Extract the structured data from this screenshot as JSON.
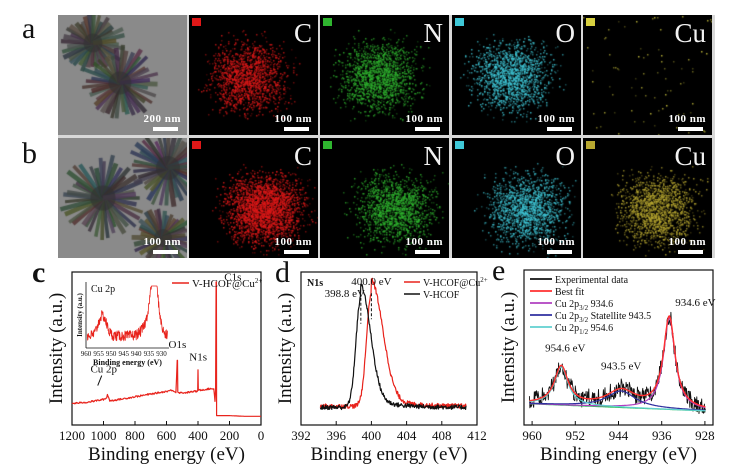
{
  "figure": {
    "panel_labels": [
      "a",
      "b",
      "c",
      "d",
      "e"
    ],
    "image_rows": [
      {
        "label": "a",
        "tiles": [
          {
            "kind": "tem",
            "scale_label": "200 nm"
          },
          {
            "kind": "map",
            "element": "C",
            "color": "#e01818",
            "scale_label": "100 nm",
            "density": "medium"
          },
          {
            "kind": "map",
            "element": "N",
            "color": "#2fb52f",
            "scale_label": "100 nm",
            "density": "medium"
          },
          {
            "kind": "map",
            "element": "O",
            "color": "#3fc8d8",
            "scale_label": "100 nm",
            "density": "medium"
          },
          {
            "kind": "map",
            "element": "Cu",
            "color": "#d8d040",
            "scale_label": "100 nm",
            "density": "sparse"
          }
        ]
      },
      {
        "label": "b",
        "tiles": [
          {
            "kind": "tem",
            "scale_label": "100 nm"
          },
          {
            "kind": "map",
            "element": "C",
            "color": "#e01818",
            "scale_label": "100 nm",
            "density": "high"
          },
          {
            "kind": "map",
            "element": "N",
            "color": "#2fb52f",
            "scale_label": "100 nm",
            "density": "medium"
          },
          {
            "kind": "map",
            "element": "O",
            "color": "#3fc8d8",
            "scale_label": "100 nm",
            "density": "medium"
          },
          {
            "kind": "map",
            "element": "Cu",
            "color": "#b8a830",
            "scale_label": "100 nm",
            "density": "medium"
          }
        ]
      }
    ]
  },
  "chart_data": [
    {
      "id": "c",
      "type": "line",
      "title": "",
      "xlabel": "Binding energy (eV)",
      "ylabel": "Intensity (a.u.)",
      "xlim": [
        1200,
        0
      ],
      "x_reversed": true,
      "xticks": [
        1200,
        1000,
        800,
        600,
        400,
        200,
        0
      ],
      "legend": [
        {
          "name": "V-HCOF@Cu",
          "sup": "2+",
          "color": "#e8231c"
        }
      ],
      "legend_position": "top-right",
      "series": [
        {
          "name": "V-HCOF@Cu2+",
          "color": "#e8231c",
          "x": [
            1200,
            1100,
            1000,
            980,
            975,
            960,
            900,
            800,
            700,
            600,
            560,
            540,
            532,
            530,
            528,
            520,
            480,
            420,
            402,
            400,
            398,
            380,
            320,
            300,
            292,
            288,
            285,
            283,
            282,
            280,
            260,
            200,
            100,
            0
          ],
          "y": [
            0.1,
            0.11,
            0.13,
            0.14,
            0.17,
            0.12,
            0.13,
            0.15,
            0.17,
            0.19,
            0.2,
            0.18,
            0.42,
            0.42,
            0.19,
            0.18,
            0.18,
            0.19,
            0.19,
            0.35,
            0.2,
            0.2,
            0.21,
            0.21,
            0.12,
            0.2,
            1.0,
            1.0,
            0.01,
            0.01,
            0.01,
            0.01,
            0.005,
            0.005
          ]
        }
      ],
      "annotations": [
        {
          "text": "C1s",
          "x": 284,
          "y": 0.98
        },
        {
          "text": "O1s",
          "x": 531,
          "y": 0.48
        },
        {
          "text": "N1s",
          "x": 399,
          "y": 0.39
        },
        {
          "text": "Cu 2p",
          "x": 935,
          "y": 0.27,
          "arrow": true
        }
      ],
      "inset": {
        "title": "Cu 2p",
        "xlabel": "Binding energy (eV)",
        "ylabel": "Intensity (a.u.)",
        "xlim": [
          960,
          927
        ],
        "xticks": [
          960,
          955,
          950,
          945,
          940,
          935,
          930
        ],
        "series": {
          "color": "#e8231c",
          "peaks": [
            {
              "center": 953.5,
              "height": 0.35,
              "width": 1.6
            },
            {
              "center": 932.8,
              "height": 0.85,
              "width": 1.5
            },
            {
              "center": 934.5,
              "height": 0.25,
              "width": 2.5
            }
          ],
          "baseline": 0.35
        }
      }
    },
    {
      "id": "d",
      "type": "line",
      "title": "N1s",
      "xlabel": "Binding energy (eV)",
      "ylabel": "Intensity (a.u.)",
      "xlim": [
        392,
        412
      ],
      "xticks": [
        392,
        396,
        400,
        404,
        408,
        412
      ],
      "legend": [
        {
          "name": "V-HCOF@Cu",
          "sup": "2+",
          "color": "#e8231c"
        },
        {
          "name": "V-HCOF",
          "sup": "",
          "color": "#111111"
        }
      ],
      "legend_position": "top-right",
      "series": [
        {
          "name": "V-HCOF@Cu2+",
          "color": "#e8231c",
          "peak": 400.0,
          "height": 1.0,
          "width_left": 0.55,
          "width_right": 1.3,
          "baseline": 0.06,
          "x_range": [
            394.2,
            410.8
          ]
        },
        {
          "name": "V-HCOF",
          "color": "#111111",
          "peak": 398.8,
          "height": 0.97,
          "width_left": 0.55,
          "width_right": 1.1,
          "baseline": 0.05,
          "x_range": [
            394.2,
            410.8
          ]
        }
      ],
      "annotations": [
        {
          "text": "400.0 eV",
          "x": 400.0,
          "dashed_line": true
        },
        {
          "text": "398.8 eV",
          "x": 398.8,
          "dashed_line": true
        }
      ]
    },
    {
      "id": "e",
      "type": "line",
      "title": "",
      "xlabel": "Binding energy (eV)",
      "ylabel": "Intensity (a.u.)",
      "xlim": [
        961.5,
        926.5
      ],
      "x_reversed": true,
      "xticks": [
        960,
        952,
        944,
        936,
        928
      ],
      "legend": [
        {
          "name": "Experimental data",
          "color": "#111111"
        },
        {
          "name": "Best fit",
          "color": "#ff3030"
        },
        {
          "name": "Cu 2p3/2   934.6",
          "color": "#b040c0"
        },
        {
          "name": "Cu 2p3/2 Statellite   943.5",
          "color": "#3030a0"
        },
        {
          "name": "Cu 2p1/2   954.6",
          "color": "#60d0d0"
        }
      ],
      "legend_position": "top-left",
      "components": [
        {
          "name": "Cu 2p3/2",
          "center": 934.6,
          "height": 0.72,
          "width": 1.3,
          "color": "#b040c0"
        },
        {
          "name": "Cu 2p3/2 Statellite",
          "center": 943.5,
          "height": 0.13,
          "width": 3.2,
          "color": "#3030a0"
        },
        {
          "name": "Cu 2p1/2",
          "center": 954.6,
          "height": 0.3,
          "width": 1.5,
          "color": "#60d0d0"
        }
      ],
      "baseline": {
        "start": 0.09,
        "end": 0.03,
        "color": "#30c060"
      },
      "annotations": [
        {
          "text": "934.6 eV",
          "x": 934.6
        },
        {
          "text": "943.5 eV",
          "x": 943.5
        },
        {
          "text": "954.6 eV",
          "x": 954.6
        }
      ]
    }
  ]
}
